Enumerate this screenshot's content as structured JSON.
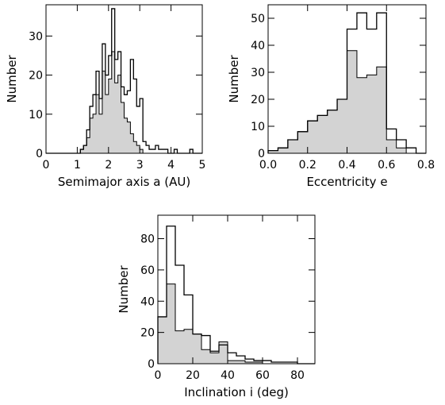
{
  "colors": {
    "fill": "#d3d3d3",
    "stroke": "#000000",
    "background": "#ffffff"
  },
  "chart_data": [
    {
      "type": "histogram",
      "xlabel": "Semimajor axis a (AU)",
      "ylabel": "Number",
      "xlim": [
        0,
        5
      ],
      "ylim": [
        0,
        38
      ],
      "xticks": [
        0,
        1,
        2,
        3,
        4,
        5
      ],
      "xtick_labels": [
        "0",
        "1",
        "2",
        "3",
        "4",
        "5"
      ],
      "yticks": [
        0,
        10,
        20,
        30
      ],
      "ytick_labels": [
        "0",
        "10",
        "20",
        "30"
      ],
      "bin_edges": [
        0.0,
        0.1,
        0.2,
        0.3,
        0.4,
        0.5,
        0.6,
        0.7,
        0.8,
        0.9,
        1.0,
        1.1,
        1.2,
        1.3,
        1.4,
        1.5,
        1.6,
        1.7,
        1.8,
        1.9,
        2.0,
        2.1,
        2.2,
        2.3,
        2.4,
        2.5,
        2.6,
        2.7,
        2.8,
        2.9,
        3.0,
        3.1,
        3.2,
        3.3,
        3.4,
        3.5,
        3.6,
        3.7,
        3.8,
        3.9,
        4.0,
        4.1,
        4.2,
        4.3,
        4.4,
        4.5,
        4.6,
        4.7,
        4.8,
        4.9,
        5.0
      ],
      "series": [
        {
          "style": "outline",
          "values": [
            0,
            0,
            0,
            0,
            0,
            0,
            0,
            0,
            0,
            0,
            0,
            1,
            2,
            6,
            12,
            15,
            21,
            14,
            28,
            20,
            25,
            37,
            24,
            26,
            17,
            15,
            16,
            24,
            19,
            12,
            14,
            3,
            2,
            1,
            1,
            2,
            1,
            1,
            1,
            0,
            0,
            1,
            0,
            0,
            0,
            0,
            1,
            0,
            0,
            0
          ]
        },
        {
          "style": "filled",
          "values": [
            0,
            0,
            0,
            0,
            0,
            0,
            0,
            0,
            0,
            0,
            0,
            1,
            2,
            4,
            9,
            10,
            15,
            10,
            21,
            15,
            19,
            26,
            18,
            20,
            13,
            9,
            8,
            5,
            3,
            2,
            1,
            0,
            0,
            0,
            0,
            0,
            0,
            0,
            0,
            0,
            0,
            0,
            0,
            0,
            0,
            0,
            0,
            0,
            0,
            0
          ]
        }
      ]
    },
    {
      "type": "histogram",
      "xlabel": "Eccentricity e",
      "ylabel": "Number",
      "xlim": [
        0,
        0.8
      ],
      "ylim": [
        0,
        55
      ],
      "xticks": [
        0,
        0.2,
        0.4,
        0.6,
        0.8
      ],
      "xtick_labels": [
        "0.0",
        "0.2",
        "0.4",
        "0.6",
        "0.8"
      ],
      "yticks": [
        0,
        10,
        20,
        30,
        40,
        50
      ],
      "ytick_labels": [
        "0",
        "10",
        "20",
        "30",
        "40",
        "50"
      ],
      "bin_edges": [
        0.0,
        0.05,
        0.1,
        0.15,
        0.2,
        0.25,
        0.3,
        0.35,
        0.4,
        0.45,
        0.5,
        0.55,
        0.6,
        0.65,
        0.7,
        0.75,
        0.8
      ],
      "series": [
        {
          "style": "outline",
          "values": [
            1,
            2,
            5,
            8,
            12,
            14,
            16,
            20,
            46,
            52,
            46,
            52,
            9,
            5,
            2,
            0
          ]
        },
        {
          "style": "filled",
          "values": [
            1,
            2,
            5,
            8,
            12,
            14,
            16,
            20,
            38,
            28,
            29,
            32,
            5,
            2,
            0,
            0
          ]
        }
      ]
    },
    {
      "type": "histogram",
      "xlabel": "Inclination i (deg)",
      "ylabel": "Number",
      "xlim": [
        0,
        90
      ],
      "ylim": [
        0,
        95
      ],
      "xticks": [
        0,
        20,
        40,
        60,
        80
      ],
      "xtick_labels": [
        "0",
        "20",
        "40",
        "60",
        "80"
      ],
      "yticks": [
        0,
        20,
        40,
        60,
        80
      ],
      "ytick_labels": [
        "0",
        "20",
        "40",
        "60",
        "80"
      ],
      "bin_edges": [
        0,
        5,
        10,
        15,
        20,
        25,
        30,
        35,
        40,
        45,
        50,
        55,
        60,
        65,
        70,
        75,
        80,
        85,
        90
      ],
      "series": [
        {
          "style": "outline",
          "values": [
            30,
            88,
            63,
            44,
            19,
            18,
            8,
            12,
            7,
            5,
            3,
            2,
            2,
            1,
            1,
            1,
            0,
            0
          ]
        },
        {
          "style": "filled",
          "values": [
            30,
            51,
            21,
            22,
            19,
            9,
            7,
            14,
            2,
            2,
            1,
            1,
            0,
            0,
            0,
            0,
            0,
            0
          ]
        }
      ]
    }
  ]
}
